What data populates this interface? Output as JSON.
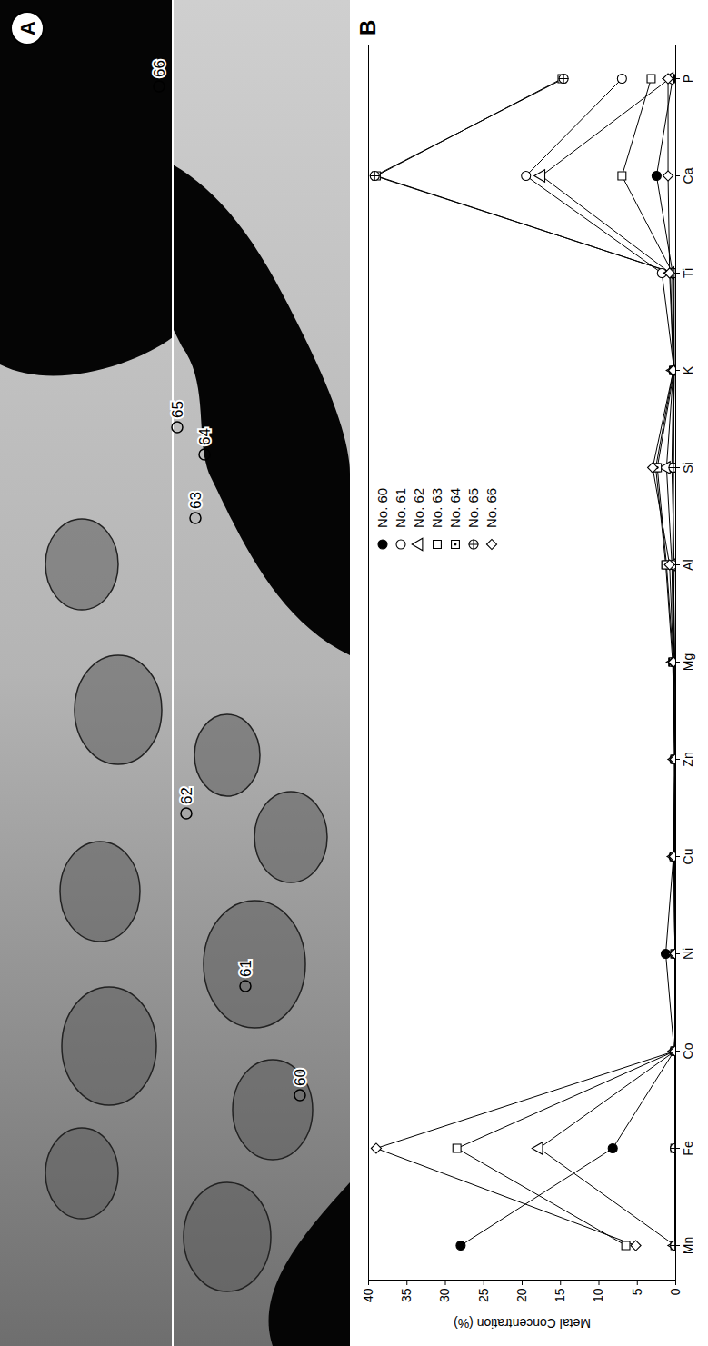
{
  "chart_data": {
    "type": "line",
    "panel_label": "B",
    "categories": [
      "Mn",
      "Fe",
      "Co",
      "Ni",
      "Cu",
      "Zn",
      "Mg",
      "Al",
      "Si",
      "K",
      "Ti",
      "Ca",
      "P"
    ],
    "y_label": "Metal Concentration (%)",
    "ylim": [
      0,
      40
    ],
    "yticks": [
      0,
      5,
      10,
      15,
      20,
      25,
      30,
      35,
      40
    ],
    "grid": false,
    "legend": "top",
    "series": [
      {
        "name": "No. 60",
        "color": "#000000",
        "marker": "circle-filled",
        "values": [
          28,
          8.2,
          0.2,
          1.3,
          0.3,
          0.1,
          0.3,
          0.2,
          0.5,
          0.3,
          0.4,
          2.5,
          0.4
        ]
      },
      {
        "name": "No. 61",
        "color": "#000000",
        "marker": "circle",
        "values": [
          0.1,
          0.1,
          0.1,
          0.1,
          0.1,
          0.2,
          0.1,
          0.3,
          0.3,
          0.2,
          1.8,
          19.5,
          7
        ]
      },
      {
        "name": "No. 62",
        "color": "#000000",
        "marker": "triangle",
        "values": [
          0.1,
          17.8,
          0.1,
          0.1,
          0.2,
          0.1,
          0.3,
          0.5,
          1.2,
          0.3,
          0.7,
          17.5,
          0.8
        ]
      },
      {
        "name": "No. 63",
        "color": "#000000",
        "marker": "square",
        "values": [
          6.5,
          28.5,
          0.1,
          0.1,
          0.2,
          0.1,
          0.4,
          1.3,
          2.6,
          0.3,
          0.4,
          7,
          3.2
        ]
      },
      {
        "name": "No. 64",
        "color": "#000000",
        "marker": "square-dot",
        "values": [
          0.1,
          0.1,
          0.1,
          0.1,
          0.2,
          0.1,
          0.3,
          1.2,
          2.4,
          0.2,
          0.3,
          39,
          14.8
        ]
      },
      {
        "name": "No. 65",
        "color": "#000000",
        "marker": "circle-plus",
        "values": [
          0.1,
          0.1,
          0.1,
          0.1,
          0.2,
          0.1,
          0.2,
          0.4,
          0.3,
          0.2,
          0.2,
          39.2,
          14.6
        ]
      },
      {
        "name": "No. 66",
        "color": "#000000",
        "marker": "diamond",
        "values": [
          5.2,
          39,
          0.1,
          0.1,
          0.2,
          0.1,
          0.3,
          0.8,
          3,
          0.3,
          0.8,
          1,
          1
        ]
      }
    ]
  },
  "image_panel": {
    "panel_label": "A",
    "point_labels": [
      "66",
      "65",
      "64",
      "63",
      "62",
      "61",
      "60"
    ]
  }
}
